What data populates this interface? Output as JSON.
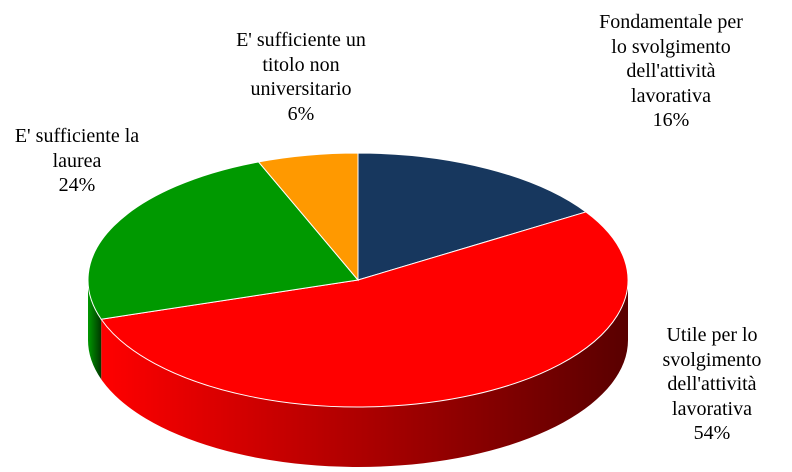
{
  "chart_data": {
    "type": "pie3d",
    "categories": [
      "Fondamentale per lo svolgimento dell'attività lavorativa",
      "Utile per lo svolgimento dell'attività lavorativa",
      "E' sufficiente la laurea",
      "E' sufficiente un titolo non universitario"
    ],
    "values": [
      16,
      54,
      24,
      6
    ],
    "value_labels": [
      "16%",
      "54%",
      "24%",
      "6%"
    ],
    "colors": [
      "#17375e",
      "#ff0000",
      "#009900",
      "#ff9900"
    ]
  }
}
